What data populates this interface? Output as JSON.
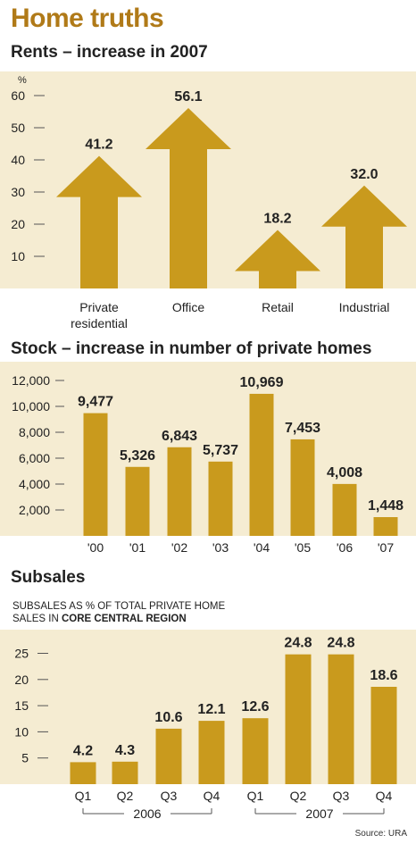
{
  "title": "Home truths",
  "colors": {
    "gold": "#c99a1d",
    "panel": "#f5ecd2",
    "title": "#b07a18"
  },
  "rents": {
    "subtitle": "Rents – increase in 2007",
    "unit": "%",
    "chart_data": {
      "type": "bar",
      "categories": [
        [
          "Private",
          "residential"
        ],
        [
          "Office"
        ],
        [
          "Retail"
        ],
        [
          "Industrial"
        ]
      ],
      "values": [
        41.2,
        56.1,
        18.2,
        32.0
      ],
      "value_labels": [
        "41.2",
        "56.1",
        "18.2",
        "32.0"
      ],
      "ylabel": "%",
      "yticks": [
        10,
        20,
        30,
        40,
        50,
        60
      ],
      "ylim": [
        0,
        60
      ]
    }
  },
  "stock": {
    "subtitle": "Stock – increase in number of private homes",
    "chart_data": {
      "type": "bar",
      "categories": [
        "'00",
        "'01",
        "'02",
        "'03",
        "'04",
        "'05",
        "'06",
        "'07"
      ],
      "values": [
        9477,
        5326,
        6843,
        5737,
        10969,
        7453,
        4008,
        1448
      ],
      "value_labels": [
        "9,477",
        "5,326",
        "6,843",
        "5,737",
        "10,969",
        "7,453",
        "4,008",
        "1,448"
      ],
      "yticks": [
        "2,000",
        "4,000",
        "6,000",
        "8,000",
        "10,000",
        "12,000"
      ],
      "ylim": [
        0,
        12000
      ]
    }
  },
  "subsales": {
    "subtitle": "Subsales",
    "note_line1": "SUBSALES AS % OF TOTAL PRIVATE HOME",
    "note_line2_prefix": "SALES IN ",
    "note_line2_bold": "CORE CENTRAL REGION",
    "chart_data": {
      "type": "bar",
      "categories": [
        "Q1",
        "Q2",
        "Q3",
        "Q4",
        "Q1",
        "Q2",
        "Q3",
        "Q4"
      ],
      "groups": [
        "2006",
        "2007"
      ],
      "values": [
        4.2,
        4.3,
        10.6,
        12.1,
        12.6,
        24.8,
        24.8,
        18.6
      ],
      "value_labels": [
        "4.2",
        "4.3",
        "10.6",
        "12.1",
        "12.6",
        "24.8",
        "24.8",
        "18.6"
      ],
      "yticks": [
        5,
        10,
        15,
        20,
        25
      ],
      "ylim": [
        0,
        25
      ]
    }
  },
  "source": "Source: URA"
}
